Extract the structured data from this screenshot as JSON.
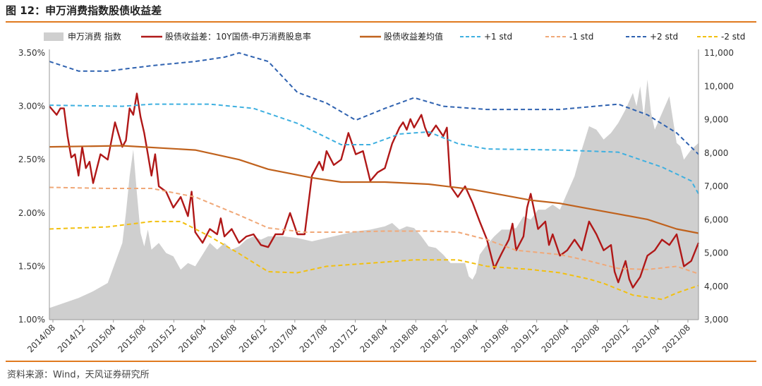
{
  "figure": {
    "title": "图 12：申万消费指数股债收益差",
    "source": "资料来源：Wind，天风证券研究所"
  },
  "chart_data": {
    "type": "line",
    "legend": [
      {
        "name": "申万消费 指数",
        "kind": "area",
        "color": "#cfcfcf"
      },
      {
        "name": "股债收益差：10Y国债-申万消费股息率",
        "kind": "line",
        "color": "#b01818"
      },
      {
        "name": "股债收益差均值",
        "kind": "line",
        "color": "#c0621d"
      },
      {
        "name": "+1 std",
        "kind": "dash",
        "color": "#3fb0e0"
      },
      {
        "name": "-1 std",
        "kind": "dash",
        "color": "#f0a878"
      },
      {
        "name": "+2 std",
        "kind": "dash",
        "color": "#2f62b0"
      },
      {
        "name": "-2 std",
        "kind": "dash",
        "color": "#f2c010"
      }
    ],
    "x_labels": [
      "2014/08",
      "2014/12",
      "2015/04",
      "2015/08",
      "2015/12",
      "2016/04",
      "2016/08",
      "2016/12",
      "2017/04",
      "2017/08",
      "2017/12",
      "2018/04",
      "2018/08",
      "2018/12",
      "2019/04",
      "2019/08",
      "2019/12",
      "2020/04",
      "2020/08",
      "2020/12",
      "2021/04",
      "2021/08"
    ],
    "x_range": [
      0,
      89
    ],
    "y_left": {
      "ticks": [
        "1.00%",
        "1.50%",
        "2.00%",
        "2.50%",
        "3.00%",
        "3.50%"
      ],
      "min": 1.0,
      "max": 3.5
    },
    "y_right": {
      "ticks": [
        "3,000",
        "4,000",
        "5,000",
        "6,000",
        "7,000",
        "8,000",
        "9,000",
        "10,000",
        "11,000"
      ],
      "min": 3000,
      "max": 11000
    },
    "series": [
      {
        "name": "申万消费 指数",
        "axis": "right",
        "type": "area",
        "points": [
          [
            0,
            3350
          ],
          [
            2,
            3500
          ],
          [
            4,
            3650
          ],
          [
            6,
            3850
          ],
          [
            8,
            4100
          ],
          [
            9,
            4700
          ],
          [
            10,
            5300
          ],
          [
            10.5,
            6200
          ],
          [
            11,
            7300
          ],
          [
            11.5,
            8100
          ],
          [
            12,
            6800
          ],
          [
            12.5,
            5600
          ],
          [
            13,
            5200
          ],
          [
            13.5,
            5700
          ],
          [
            14,
            5100
          ],
          [
            15,
            5300
          ],
          [
            16,
            5000
          ],
          [
            17,
            4900
          ],
          [
            18,
            4500
          ],
          [
            19,
            4700
          ],
          [
            20,
            4600
          ],
          [
            21,
            4950
          ],
          [
            22,
            5300
          ],
          [
            23,
            5100
          ],
          [
            24,
            5300
          ],
          [
            25,
            5100
          ],
          [
            26,
            5200
          ],
          [
            27,
            5400
          ],
          [
            28,
            5500
          ],
          [
            29,
            5400
          ],
          [
            30,
            5500
          ],
          [
            32,
            5500
          ],
          [
            34,
            5450
          ],
          [
            36,
            5350
          ],
          [
            38,
            5450
          ],
          [
            40,
            5550
          ],
          [
            42,
            5650
          ],
          [
            44,
            5700
          ],
          [
            46,
            5800
          ],
          [
            47,
            5900
          ],
          [
            48,
            5700
          ],
          [
            49,
            5800
          ],
          [
            50,
            5750
          ],
          [
            51,
            5500
          ],
          [
            52,
            5200
          ],
          [
            53,
            5150
          ],
          [
            54,
            4950
          ],
          [
            55,
            4700
          ],
          [
            56,
            4700
          ],
          [
            57,
            4700
          ],
          [
            57.5,
            4300
          ],
          [
            58,
            4200
          ],
          [
            58.5,
            4400
          ],
          [
            59,
            4950
          ],
          [
            60,
            5250
          ],
          [
            61,
            5500
          ],
          [
            62,
            5700
          ],
          [
            63,
            5700
          ],
          [
            64,
            5750
          ],
          [
            65,
            6100
          ],
          [
            66,
            6000
          ],
          [
            67,
            6300
          ],
          [
            68,
            6300
          ],
          [
            69,
            6450
          ],
          [
            70,
            6300
          ],
          [
            71,
            6800
          ],
          [
            72,
            7300
          ],
          [
            73,
            8100
          ],
          [
            74,
            8800
          ],
          [
            75,
            8700
          ],
          [
            76,
            8400
          ],
          [
            77,
            8600
          ],
          [
            78,
            8900
          ],
          [
            79,
            9300
          ],
          [
            80,
            9800
          ],
          [
            80.5,
            9400
          ],
          [
            81,
            10000
          ],
          [
            81.5,
            9100
          ],
          [
            82,
            10200
          ],
          [
            82.5,
            9200
          ],
          [
            83,
            8700
          ],
          [
            84,
            9200
          ],
          [
            85,
            9700
          ],
          [
            85.5,
            9000
          ],
          [
            86,
            8300
          ],
          [
            86.5,
            8200
          ],
          [
            87,
            7800
          ],
          [
            88,
            8100
          ],
          [
            89,
            8300
          ]
        ]
      },
      {
        "name": "股债收益差：10Y国债-申万消费股息率",
        "axis": "left",
        "type": "line",
        "points": [
          [
            0,
            3.0
          ],
          [
            1,
            2.92
          ],
          [
            1.5,
            2.98
          ],
          [
            2,
            2.98
          ],
          [
            2.5,
            2.72
          ],
          [
            3,
            2.52
          ],
          [
            3.5,
            2.55
          ],
          [
            4,
            2.35
          ],
          [
            4.5,
            2.62
          ],
          [
            5,
            2.42
          ],
          [
            5.5,
            2.48
          ],
          [
            6,
            2.28
          ],
          [
            7,
            2.55
          ],
          [
            8,
            2.5
          ],
          [
            9,
            2.85
          ],
          [
            10,
            2.62
          ],
          [
            10.5,
            2.68
          ],
          [
            11,
            2.98
          ],
          [
            11.5,
            2.92
          ],
          [
            12,
            3.12
          ],
          [
            12.5,
            2.9
          ],
          [
            13,
            2.75
          ],
          [
            13.5,
            2.55
          ],
          [
            14,
            2.35
          ],
          [
            14.5,
            2.55
          ],
          [
            15,
            2.25
          ],
          [
            16,
            2.2
          ],
          [
            17,
            2.05
          ],
          [
            18,
            2.15
          ],
          [
            19,
            1.97
          ],
          [
            19.5,
            2.2
          ],
          [
            20,
            1.82
          ],
          [
            21,
            1.72
          ],
          [
            22,
            1.85
          ],
          [
            23,
            1.8
          ],
          [
            23.5,
            1.95
          ],
          [
            24,
            1.78
          ],
          [
            25,
            1.85
          ],
          [
            26,
            1.72
          ],
          [
            27,
            1.78
          ],
          [
            28,
            1.8
          ],
          [
            29,
            1.7
          ],
          [
            30,
            1.68
          ],
          [
            31,
            1.8
          ],
          [
            32,
            1.8
          ],
          [
            33,
            2.0
          ],
          [
            34,
            1.8
          ],
          [
            35,
            1.8
          ],
          [
            36,
            2.35
          ],
          [
            37,
            2.48
          ],
          [
            37.5,
            2.4
          ],
          [
            38,
            2.58
          ],
          [
            39,
            2.45
          ],
          [
            40,
            2.5
          ],
          [
            41,
            2.75
          ],
          [
            42,
            2.55
          ],
          [
            43,
            2.58
          ],
          [
            44,
            2.3
          ],
          [
            45,
            2.38
          ],
          [
            46,
            2.42
          ],
          [
            47,
            2.65
          ],
          [
            48,
            2.8
          ],
          [
            48.5,
            2.85
          ],
          [
            49,
            2.78
          ],
          [
            49.5,
            2.88
          ],
          [
            50,
            2.8
          ],
          [
            51,
            2.92
          ],
          [
            51.5,
            2.8
          ],
          [
            52,
            2.72
          ],
          [
            53,
            2.82
          ],
          [
            54,
            2.72
          ],
          [
            54.5,
            2.8
          ],
          [
            55,
            2.25
          ],
          [
            56,
            2.15
          ],
          [
            57,
            2.25
          ],
          [
            58,
            2.1
          ],
          [
            59,
            1.92
          ],
          [
            60,
            1.75
          ],
          [
            61,
            1.48
          ],
          [
            62,
            1.62
          ],
          [
            63,
            1.75
          ],
          [
            63.5,
            1.9
          ],
          [
            64,
            1.65
          ],
          [
            65,
            1.78
          ],
          [
            65.5,
            2.05
          ],
          [
            66,
            2.18
          ],
          [
            67,
            1.85
          ],
          [
            68,
            1.92
          ],
          [
            68.5,
            1.7
          ],
          [
            69,
            1.8
          ],
          [
            70,
            1.6
          ],
          [
            71,
            1.65
          ],
          [
            72,
            1.75
          ],
          [
            73,
            1.65
          ],
          [
            74,
            1.92
          ],
          [
            75,
            1.8
          ],
          [
            76,
            1.65
          ],
          [
            77,
            1.7
          ],
          [
            77.5,
            1.45
          ],
          [
            78,
            1.35
          ],
          [
            79,
            1.55
          ],
          [
            79.5,
            1.38
          ],
          [
            80,
            1.3
          ],
          [
            81,
            1.4
          ],
          [
            82,
            1.6
          ],
          [
            83,
            1.65
          ],
          [
            84,
            1.75
          ],
          [
            85,
            1.7
          ],
          [
            86,
            1.8
          ],
          [
            86.5,
            1.65
          ],
          [
            87,
            1.5
          ],
          [
            88,
            1.55
          ],
          [
            89,
            1.72
          ]
        ]
      },
      {
        "name": "股债收益差均值",
        "axis": "left",
        "type": "line",
        "points": [
          [
            0,
            2.62
          ],
          [
            10,
            2.63
          ],
          [
            20,
            2.59
          ],
          [
            26,
            2.5
          ],
          [
            30,
            2.41
          ],
          [
            36,
            2.33
          ],
          [
            40,
            2.29
          ],
          [
            46,
            2.29
          ],
          [
            52,
            2.27
          ],
          [
            58,
            2.22
          ],
          [
            62,
            2.17
          ],
          [
            66,
            2.12
          ],
          [
            70,
            2.09
          ],
          [
            74,
            2.04
          ],
          [
            78,
            1.99
          ],
          [
            82,
            1.94
          ],
          [
            86,
            1.85
          ],
          [
            89,
            1.81
          ]
        ]
      },
      {
        "name": "+1 std",
        "axis": "left",
        "type": "dash",
        "points": [
          [
            0,
            3.01
          ],
          [
            10,
            3.0
          ],
          [
            14,
            3.02
          ],
          [
            22,
            3.02
          ],
          [
            28,
            2.98
          ],
          [
            34,
            2.84
          ],
          [
            40,
            2.64
          ],
          [
            44,
            2.64
          ],
          [
            48,
            2.74
          ],
          [
            52,
            2.76
          ],
          [
            56,
            2.65
          ],
          [
            60,
            2.6
          ],
          [
            70,
            2.59
          ],
          [
            78,
            2.57
          ],
          [
            84,
            2.43
          ],
          [
            88,
            2.3
          ],
          [
            89,
            2.18
          ]
        ]
      },
      {
        "name": "-1 std",
        "axis": "left",
        "type": "dash",
        "points": [
          [
            0,
            2.24
          ],
          [
            8,
            2.23
          ],
          [
            14,
            2.23
          ],
          [
            20,
            2.15
          ],
          [
            26,
            1.98
          ],
          [
            30,
            1.86
          ],
          [
            35,
            1.82
          ],
          [
            40,
            1.82
          ],
          [
            46,
            1.83
          ],
          [
            52,
            1.83
          ],
          [
            56,
            1.82
          ],
          [
            60,
            1.75
          ],
          [
            64,
            1.65
          ],
          [
            70,
            1.61
          ],
          [
            74,
            1.55
          ],
          [
            78,
            1.48
          ],
          [
            82,
            1.47
          ],
          [
            86,
            1.5
          ],
          [
            89,
            1.43
          ]
        ]
      },
      {
        "name": "+2 std",
        "axis": "left",
        "type": "dash",
        "points": [
          [
            0,
            3.42
          ],
          [
            4,
            3.33
          ],
          [
            8,
            3.33
          ],
          [
            14,
            3.38
          ],
          [
            20,
            3.42
          ],
          [
            24,
            3.46
          ],
          [
            26,
            3.5
          ],
          [
            30,
            3.42
          ],
          [
            34,
            3.13
          ],
          [
            38,
            3.03
          ],
          [
            42,
            2.87
          ],
          [
            46,
            2.98
          ],
          [
            50,
            3.08
          ],
          [
            54,
            3.0
          ],
          [
            60,
            2.97
          ],
          [
            70,
            2.97
          ],
          [
            78,
            3.02
          ],
          [
            82,
            2.92
          ],
          [
            86,
            2.75
          ],
          [
            89,
            2.55
          ]
        ]
      },
      {
        "name": "-2 std",
        "axis": "left",
        "type": "dash",
        "points": [
          [
            0,
            1.85
          ],
          [
            8,
            1.87
          ],
          [
            14,
            1.92
          ],
          [
            18,
            1.92
          ],
          [
            22,
            1.78
          ],
          [
            26,
            1.62
          ],
          [
            30,
            1.45
          ],
          [
            34,
            1.44
          ],
          [
            38,
            1.5
          ],
          [
            44,
            1.53
          ],
          [
            50,
            1.56
          ],
          [
            56,
            1.56
          ],
          [
            60,
            1.5
          ],
          [
            66,
            1.47
          ],
          [
            70,
            1.44
          ],
          [
            74,
            1.38
          ],
          [
            76,
            1.34
          ],
          [
            80,
            1.23
          ],
          [
            84,
            1.19
          ],
          [
            86,
            1.25
          ],
          [
            89,
            1.32
          ]
        ]
      }
    ]
  }
}
